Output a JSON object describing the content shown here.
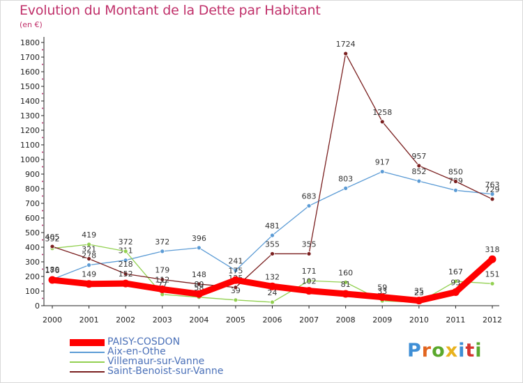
{
  "header": {
    "title": "Evolution du Montant de la Dette par Habitant",
    "unit": "(en €)"
  },
  "logo": {
    "text": "Proxiti",
    "letter_colors": [
      "#3f8fd6",
      "#e2651f",
      "#5aa82c",
      "#e8b21e",
      "#3f8fd6",
      "#d6342e",
      "#5aa82c"
    ]
  },
  "chart_data": {
    "type": "line",
    "title": "Evolution du Montant de la Dette par Habitant",
    "ylabel": "(en €)",
    "xlabel": "",
    "x": [
      2000,
      2001,
      2002,
      2003,
      2004,
      2005,
      2006,
      2007,
      2008,
      2009,
      2010,
      2011,
      2012
    ],
    "xticks": [
      "2000",
      "2001",
      "2002",
      "2003",
      "2004",
      "2005",
      "2006",
      "2007",
      "2008",
      "2009",
      "2010",
      "2011",
      "2012"
    ],
    "ylim": [
      0,
      1800
    ],
    "yticks": [
      "0",
      "100",
      "200",
      "300",
      "400",
      "500",
      "600",
      "700",
      "800",
      "900",
      "1000",
      "1100",
      "1200",
      "1300",
      "1400",
      "1500",
      "1600",
      "1700",
      "1800"
    ],
    "grid": false,
    "legend_position": "bottom-left",
    "series": [
      {
        "name": "PAISY-COSDON",
        "color": "#ff0000",
        "emphasis": true,
        "values": [
          176,
          149,
          152,
          112,
          80,
          175,
          132,
          102,
          81,
          59,
          35,
          93,
          318
        ],
        "labels": [
          "176",
          "149",
          "152",
          "112",
          "80",
          "175",
          "132",
          "102",
          "81",
          "59",
          "35",
          "93",
          "318"
        ]
      },
      {
        "name": "Aix-en-Othe",
        "color": "#5b9bd5",
        "emphasis": false,
        "values": [
          180,
          278,
          311,
          372,
          396,
          241,
          481,
          683,
          803,
          917,
          852,
          789,
          763
        ],
        "labels": [
          "180",
          "278",
          "311",
          "372",
          "396",
          "241",
          "481",
          "683",
          "803",
          "917",
          "852",
          "789",
          "763"
        ]
      },
      {
        "name": "Villemaur-sur-Vanne",
        "color": "#92d050",
        "emphasis": false,
        "values": [
          392,
          419,
          372,
          77,
          58,
          39,
          24,
          171,
          160,
          33,
          23,
          167,
          151
        ],
        "labels": [
          "392",
          "419",
          "372",
          "77",
          "58",
          "39",
          "24",
          "171",
          "160",
          "33",
          "23",
          "167",
          "151"
        ]
      },
      {
        "name": "Saint-Benoist-sur-Vanne",
        "color": "#7a1f1f",
        "emphasis": false,
        "values": [
          405,
          321,
          218,
          179,
          148,
          125,
          355,
          355,
          1724,
          1258,
          957,
          850,
          729
        ],
        "labels": [
          "405",
          "321",
          "218",
          "179",
          "148",
          "125",
          "355",
          "355",
          "1724",
          "1258",
          "957",
          "850",
          "729"
        ]
      }
    ]
  }
}
